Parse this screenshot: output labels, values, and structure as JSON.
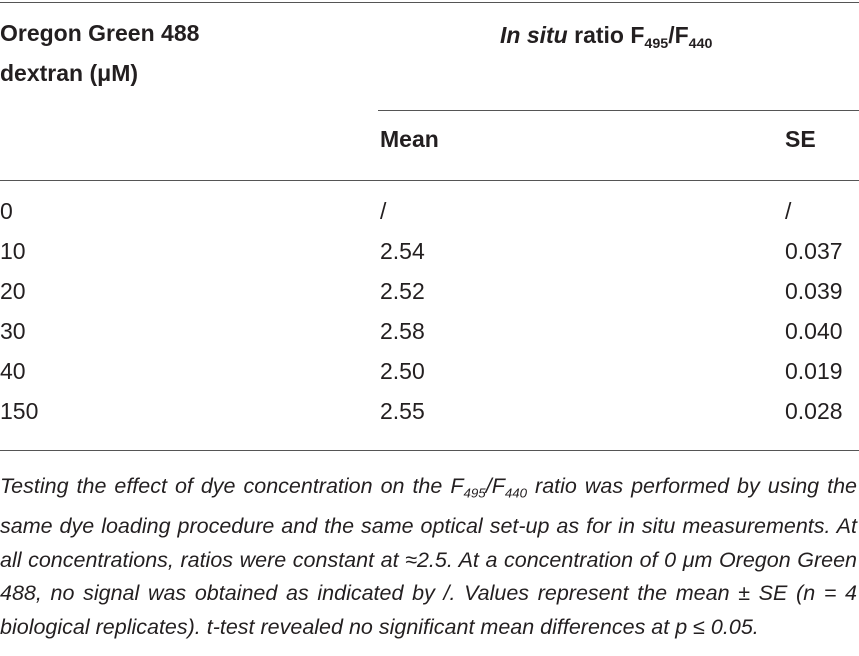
{
  "table": {
    "header": {
      "concentration": [
        "Oregon Green 488",
        "dextran (μM)"
      ],
      "ratio": [
        {
          "text": "In situ",
          "style": "italic"
        },
        {
          "text": " ratio F",
          "style": "normal"
        },
        {
          "text": "495",
          "style": "sub"
        },
        {
          "text": "/F",
          "style": "normal"
        },
        {
          "text": "440",
          "style": "sub"
        }
      ],
      "columns": [
        "Mean",
        "SE"
      ]
    },
    "rows": [
      [
        "0",
        "/",
        "/"
      ],
      [
        "10",
        "2.54",
        "0.037"
      ],
      [
        "20",
        "2.52",
        "0.039"
      ],
      [
        "30",
        "2.58",
        "0.040"
      ],
      [
        "40",
        "2.50",
        "0.019"
      ],
      [
        "150",
        "2.55",
        "0.028"
      ]
    ],
    "footnote": [
      {
        "text": "Testing the effect of dye concentration on the F",
        "style": "italic"
      },
      {
        "text": "495",
        "style": "italic-sub"
      },
      {
        "text": "/F",
        "style": "italic"
      },
      {
        "text": "440",
        "style": "italic-sub"
      },
      {
        "text": " ratio was performed by using the same dye loading procedure and the same optical set-up as for in",
        "style": "italic"
      },
      {
        "text": " situ measurements. At all concentrations, ratios were constant at ≈2.5. At a concentration of 0 μm Oregon Green 488, no signal was obtained as indicated by /. Values represent the mean ± SE (n = 4 biological replicates). t-test revealed no significant mean differences at ",
        "style": "italic"
      },
      {
        "text": "p",
        "style": "italic"
      },
      {
        "text": " ≤ 0.05.",
        "style": "italic"
      }
    ]
  }
}
